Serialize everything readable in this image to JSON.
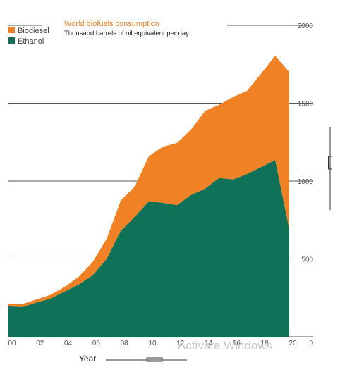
{
  "chart_data": {
    "type": "area",
    "stacked": true,
    "title": "World biofuels consumption",
    "subtitle": "Thousand barrels of oil equivalent per day",
    "xlabel": "Year",
    "ylabel": "",
    "x": [
      2000,
      2001,
      2002,
      2003,
      2004,
      2005,
      2006,
      2007,
      2008,
      2009,
      2010,
      2011,
      2012,
      2013,
      2014,
      2015,
      2016,
      2017,
      2018,
      2019,
      2020
    ],
    "x_tick_labels": [
      "00",
      "02",
      "04",
      "06",
      "08",
      "10",
      "12",
      "14",
      "16",
      "18",
      "20"
    ],
    "y_tick_labels": [
      "0",
      "500",
      "1000",
      "1500",
      "2000"
    ],
    "ylim": [
      0,
      2000
    ],
    "series": [
      {
        "name": "Ethanol",
        "color": "#0f7158",
        "values": [
          195,
          190,
          220,
          245,
          290,
          335,
          395,
          500,
          680,
          770,
          870,
          860,
          845,
          910,
          950,
          1020,
          1010,
          1045,
          1090,
          1135,
          690
        ]
      },
      {
        "name": "Biodiesel",
        "color": "#f08125",
        "values": [
          15,
          20,
          20,
          25,
          30,
          50,
          85,
          130,
          195,
          195,
          290,
          360,
          400,
          420,
          500,
          470,
          530,
          535,
          600,
          670,
          1010
        ]
      }
    ],
    "legend_position": "top-left",
    "grid": true
  },
  "colors": {
    "title": "#f08125",
    "grid": "#555555"
  },
  "watermark": "Activate Windows"
}
